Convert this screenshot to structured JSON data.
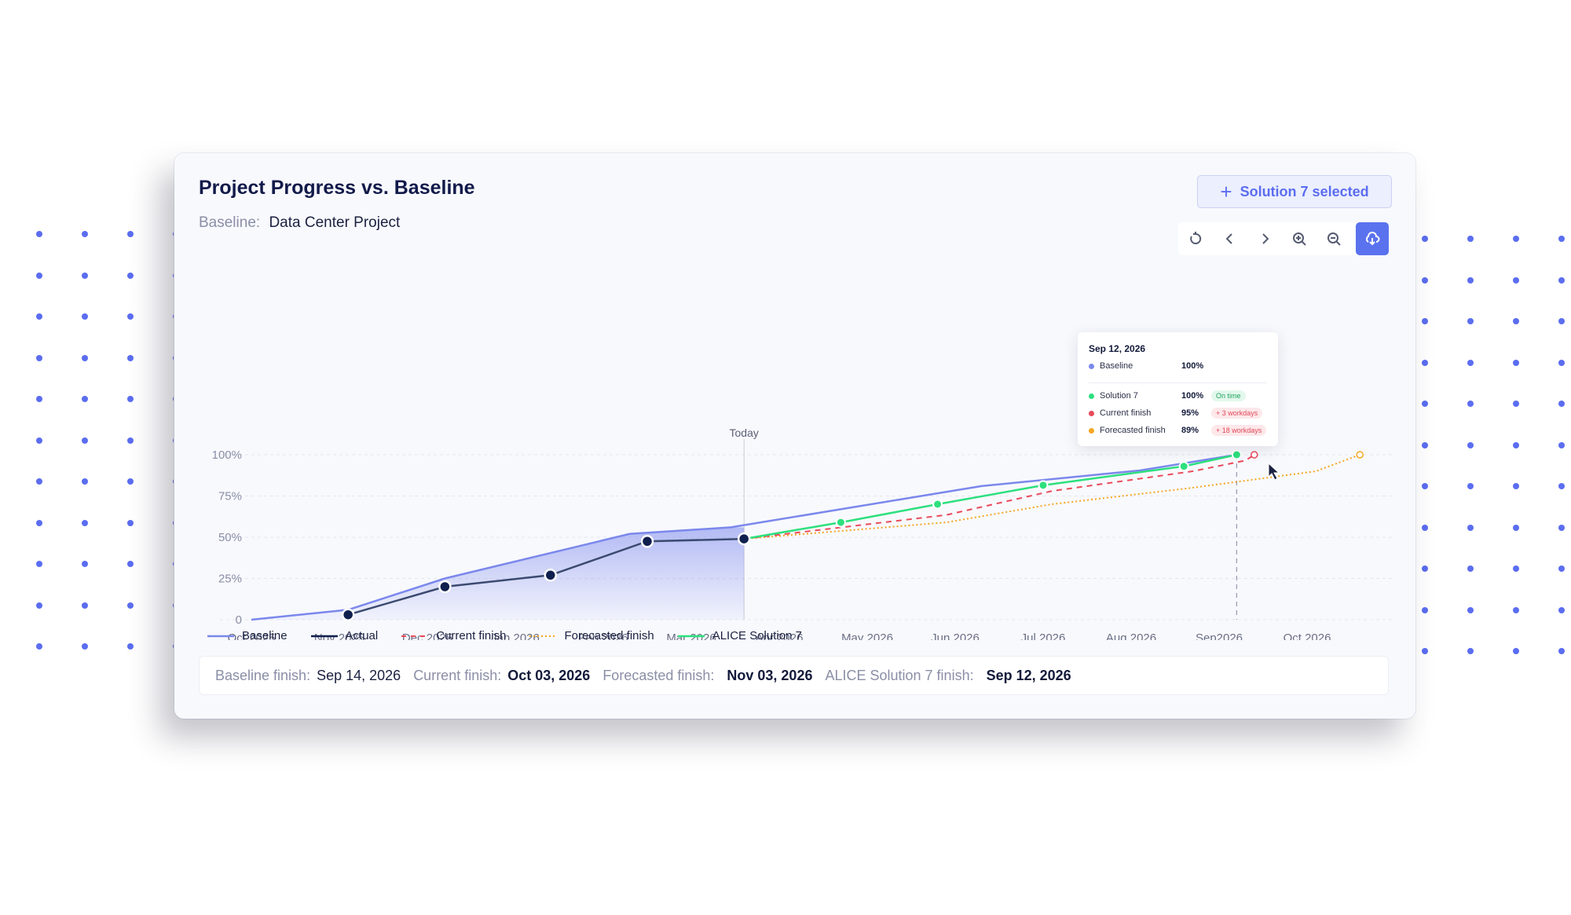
{
  "colors": {
    "baseline": "#7b88ec",
    "actual": "#0f1f4e",
    "current_finish": "#ea4a5a",
    "forecasted_finish": "#f5a623",
    "solution7": "#2de07e",
    "accent": "#5a72ee"
  },
  "header": {
    "title": "Project Progress vs. Baseline",
    "baseline_label": "Baseline:",
    "baseline_value": "Data Center Project",
    "solution_button": "Solution 7 selected"
  },
  "toolbar": {
    "icons": [
      "reset-icon",
      "chevron-left-icon",
      "chevron-right-icon",
      "zoom-in-icon",
      "zoom-out-icon",
      "cloud-download-icon"
    ]
  },
  "legend": {
    "baseline": "Baseline",
    "actual": "Actual",
    "current": "Current finish",
    "forecast": "Forecasted finish",
    "solution": "ALICE Solution 7"
  },
  "tooltip": {
    "date": "Sep 12, 2026",
    "rows": [
      {
        "name": "Baseline",
        "pct": "100%",
        "badge": ""
      },
      {
        "name": "Solution 7",
        "pct": "100%",
        "badge": "On time"
      },
      {
        "name": "Current finish",
        "pct": "95%",
        "badge": "+ 3 workdays"
      },
      {
        "name": "Forecasted finish",
        "pct": "89%",
        "badge": "+ 18 workdays"
      }
    ]
  },
  "summary": {
    "baseline_label": "Baseline finish:",
    "baseline_value": "Sep 14, 2026",
    "current_label": "Current finish:",
    "current_value": "Oct 03, 2026",
    "forecast_label": "Forecasted finish:",
    "forecast_value": "Nov 03, 2026",
    "solution_label": "ALICE Solution 7 finish:",
    "solution_value": "Sep 12, 2026"
  },
  "chart_data": {
    "type": "line",
    "categories": [
      "Oct 2025",
      "Nov 2025",
      "Dec 2025",
      "Jan 2026",
      "Feb 2026",
      "Mar 2026",
      "Apr 2026",
      "May 2026",
      "Jun 2026",
      "Jul 2026",
      "Aug 2026",
      "Sep2026",
      "Oct 2026"
    ],
    "y_ticks": [
      "0",
      "25%",
      "50%",
      "75%",
      "100%"
    ],
    "ylim": [
      0,
      100
    ],
    "today_label": "Today",
    "series": [
      {
        "name": "Baseline",
        "points": [
          [
            0,
            0
          ],
          [
            1.1,
            6
          ],
          [
            2.2,
            25
          ],
          [
            4.3,
            52
          ],
          [
            5.45,
            56
          ],
          [
            8.3,
            81
          ],
          [
            10.1,
            90.5
          ],
          [
            11.2,
            100
          ]
        ]
      },
      {
        "name": "Actual",
        "points": [
          [
            1.1,
            3
          ],
          [
            2.2,
            20
          ],
          [
            3.4,
            27
          ],
          [
            4.5,
            47.5
          ],
          [
            5.6,
            49
          ]
        ]
      },
      {
        "name": "Current finish",
        "points": [
          [
            5.6,
            49
          ],
          [
            7.9,
            63.5
          ],
          [
            9.1,
            78
          ],
          [
            10.7,
            90
          ],
          [
            11.3,
            96.5
          ],
          [
            11.4,
            100
          ]
        ]
      },
      {
        "name": "Forecasted finish",
        "points": [
          [
            5.6,
            49
          ],
          [
            7.9,
            59
          ],
          [
            9.1,
            70
          ],
          [
            10.7,
            80
          ],
          [
            12.1,
            90
          ],
          [
            12.6,
            100
          ]
        ]
      },
      {
        "name": "ALICE Solution 7",
        "points": [
          [
            5.6,
            49
          ],
          [
            6.7,
            59
          ],
          [
            7.8,
            70
          ],
          [
            9.0,
            81.5
          ],
          [
            10.6,
            93
          ],
          [
            11.2,
            100
          ]
        ]
      }
    ]
  }
}
